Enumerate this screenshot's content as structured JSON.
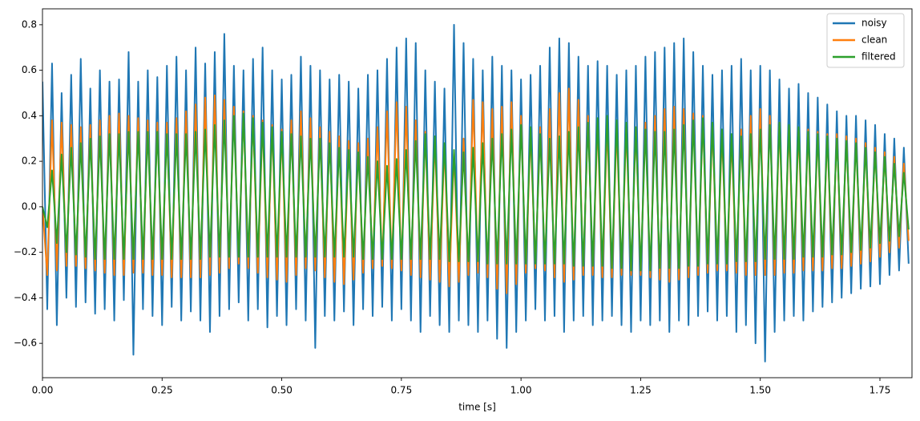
{
  "chart_data": {
    "type": "line",
    "xlabel": "time [s]",
    "x": [
      0,
      0.01,
      0.02,
      0.03,
      0.04,
      0.05,
      0.06,
      0.07,
      0.08,
      0.09,
      0.1,
      0.11,
      0.12,
      0.13,
      0.14,
      0.15,
      0.16,
      0.17,
      0.18,
      0.19,
      0.2,
      0.21,
      0.22,
      0.23,
      0.24,
      0.25,
      0.26,
      0.27,
      0.28,
      0.29,
      0.3,
      0.31,
      0.32,
      0.33,
      0.34,
      0.35,
      0.36,
      0.37,
      0.38,
      0.39,
      0.4,
      0.41,
      0.42,
      0.43,
      0.44,
      0.45,
      0.46,
      0.47,
      0.48,
      0.49,
      0.5,
      0.51,
      0.52,
      0.53,
      0.54,
      0.55,
      0.56,
      0.57,
      0.58,
      0.59,
      0.6,
      0.61,
      0.62,
      0.63,
      0.64,
      0.65,
      0.66,
      0.67,
      0.68,
      0.69,
      0.7,
      0.71,
      0.72,
      0.73,
      0.74,
      0.75,
      0.76,
      0.77,
      0.78,
      0.79,
      0.8,
      0.81,
      0.82,
      0.83,
      0.84,
      0.85,
      0.86,
      0.87,
      0.88,
      0.89,
      0.9,
      0.91,
      0.92,
      0.93,
      0.94,
      0.95,
      0.96,
      0.97,
      0.98,
      0.99,
      1,
      1.01,
      1.02,
      1.03,
      1.04,
      1.05,
      1.06,
      1.07,
      1.08,
      1.09,
      1.1,
      1.11,
      1.12,
      1.13,
      1.14,
      1.15,
      1.16,
      1.17,
      1.18,
      1.19,
      1.2,
      1.21,
      1.22,
      1.23,
      1.24,
      1.25,
      1.26,
      1.27,
      1.28,
      1.29,
      1.3,
      1.31,
      1.32,
      1.33,
      1.34,
      1.35,
      1.36,
      1.37,
      1.38,
      1.39,
      1.4,
      1.41,
      1.42,
      1.43,
      1.44,
      1.45,
      1.46,
      1.47,
      1.48,
      1.49,
      1.5,
      1.51,
      1.52,
      1.53,
      1.54,
      1.55,
      1.56,
      1.57,
      1.58,
      1.59,
      1.6,
      1.61,
      1.62,
      1.63,
      1.64,
      1.65,
      1.66,
      1.67,
      1.68,
      1.69,
      1.7,
      1.71,
      1.72,
      1.73,
      1.74,
      1.75,
      1.76,
      1.77,
      1.78,
      1.79,
      1.8,
      1.81
    ],
    "series": [
      {
        "name": "noisy",
        "color": "#1f77b4",
        "values": [
          0.55,
          -0.45,
          0.63,
          -0.52,
          0.5,
          -0.4,
          0.58,
          -0.44,
          0.65,
          -0.42,
          0.52,
          -0.47,
          0.6,
          -0.45,
          0.55,
          -0.5,
          0.56,
          -0.41,
          0.68,
          -0.65,
          0.55,
          -0.45,
          0.6,
          -0.48,
          0.57,
          -0.52,
          0.62,
          -0.44,
          0.66,
          -0.5,
          0.6,
          -0.46,
          0.7,
          -0.5,
          0.63,
          -0.55,
          0.68,
          -0.48,
          0.76,
          -0.45,
          0.62,
          -0.42,
          0.6,
          -0.5,
          0.65,
          -0.45,
          0.7,
          -0.53,
          0.6,
          -0.48,
          0.56,
          -0.52,
          0.58,
          -0.45,
          0.66,
          -0.5,
          0.62,
          -0.62,
          0.6,
          -0.48,
          0.56,
          -0.5,
          0.58,
          -0.46,
          0.55,
          -0.52,
          0.52,
          -0.45,
          0.58,
          -0.48,
          0.6,
          -0.44,
          0.65,
          -0.5,
          0.7,
          -0.45,
          0.74,
          -0.5,
          0.72,
          -0.55,
          0.6,
          -0.48,
          0.55,
          -0.52,
          0.52,
          -0.55,
          0.8,
          -0.5,
          0.72,
          -0.52,
          0.65,
          -0.55,
          0.6,
          -0.5,
          0.66,
          -0.58,
          0.62,
          -0.62,
          0.6,
          -0.55,
          0.56,
          -0.5,
          0.58,
          -0.45,
          0.62,
          -0.5,
          0.7,
          -0.48,
          0.74,
          -0.55,
          0.72,
          -0.5,
          0.66,
          -0.48,
          0.62,
          -0.52,
          0.64,
          -0.5,
          0.62,
          -0.48,
          0.58,
          -0.52,
          0.6,
          -0.55,
          0.62,
          -0.5,
          0.66,
          -0.52,
          0.68,
          -0.5,
          0.7,
          -0.55,
          0.72,
          -0.5,
          0.74,
          -0.52,
          0.68,
          -0.48,
          0.62,
          -0.46,
          0.58,
          -0.5,
          0.6,
          -0.48,
          0.62,
          -0.55,
          0.65,
          -0.52,
          0.6,
          -0.6,
          0.62,
          -0.68,
          0.6,
          -0.55,
          0.56,
          -0.5,
          0.52,
          -0.48,
          0.54,
          -0.5,
          0.5,
          -0.46,
          0.48,
          -0.44,
          0.45,
          -0.42,
          0.42,
          -0.4,
          0.4,
          -0.38,
          0.4,
          -0.36,
          0.38,
          -0.35,
          0.36,
          -0.34,
          0.32,
          -0.3,
          0.3,
          -0.28,
          0.26,
          -0.25
        ]
      },
      {
        "name": "clean",
        "color": "#ff7f0e",
        "values": [
          0,
          -0.3,
          0.38,
          -0.28,
          0.37,
          -0.26,
          0.36,
          -0.26,
          0.35,
          -0.27,
          0.36,
          -0.28,
          0.38,
          -0.29,
          0.4,
          -0.3,
          0.41,
          -0.3,
          0.4,
          -0.29,
          0.39,
          -0.29,
          0.38,
          -0.3,
          0.37,
          -0.3,
          0.37,
          -0.31,
          0.39,
          -0.31,
          0.42,
          -0.31,
          0.45,
          -0.31,
          0.48,
          -0.3,
          0.49,
          -0.29,
          0.47,
          -0.27,
          0.44,
          -0.25,
          0.42,
          -0.27,
          0.4,
          -0.29,
          0.38,
          -0.31,
          0.36,
          -0.32,
          0.34,
          -0.33,
          0.38,
          -0.3,
          0.42,
          -0.27,
          0.39,
          -0.28,
          0.35,
          -0.31,
          0.33,
          -0.33,
          0.31,
          -0.34,
          0.29,
          -0.32,
          0.28,
          -0.29,
          0.3,
          -0.27,
          0.35,
          -0.26,
          0.42,
          -0.27,
          0.46,
          -0.28,
          0.44,
          -0.3,
          0.38,
          -0.31,
          0.33,
          -0.32,
          0.3,
          -0.33,
          0.27,
          -0.35,
          0.24,
          -0.33,
          0.3,
          -0.3,
          0.47,
          -0.29,
          0.46,
          -0.31,
          0.43,
          -0.36,
          0.44,
          -0.38,
          0.46,
          -0.34,
          0.4,
          -0.29,
          0.33,
          -0.27,
          0.35,
          -0.28,
          0.43,
          -0.31,
          0.5,
          -0.33,
          0.52,
          -0.32,
          0.47,
          -0.3,
          0.4,
          -0.3,
          0.37,
          -0.31,
          0.36,
          -0.31,
          0.35,
          -0.3,
          0.35,
          -0.3,
          0.35,
          -0.3,
          0.37,
          -0.31,
          0.4,
          -0.32,
          0.43,
          -0.33,
          0.44,
          -0.32,
          0.43,
          -0.31,
          0.41,
          -0.3,
          0.4,
          -0.29,
          0.36,
          -0.28,
          0.32,
          -0.28,
          0.3,
          -0.29,
          0.34,
          -0.3,
          0.4,
          -0.3,
          0.43,
          -0.3,
          0.4,
          -0.3,
          0.37,
          -0.29,
          0.35,
          -0.29,
          0.34,
          -0.28,
          0.34,
          -0.28,
          0.33,
          -0.28,
          0.32,
          -0.27,
          0.32,
          -0.27,
          0.31,
          -0.26,
          0.3,
          -0.25,
          0.28,
          -0.24,
          0.26,
          -0.22,
          0.24,
          -0.2,
          0.22,
          -0.18,
          0.19,
          -0.15
        ]
      },
      {
        "name": "filtered",
        "color": "#2ca02c",
        "values": [
          0,
          -0.09,
          0.16,
          -0.16,
          0.23,
          -0.2,
          0.26,
          -0.21,
          0.28,
          -0.22,
          0.3,
          -0.23,
          0.31,
          -0.23,
          0.32,
          -0.23,
          0.32,
          -0.23,
          0.33,
          -0.23,
          0.33,
          -0.23,
          0.33,
          -0.23,
          0.33,
          -0.23,
          0.32,
          -0.23,
          0.32,
          -0.23,
          0.32,
          -0.23,
          0.33,
          -0.23,
          0.34,
          -0.22,
          0.36,
          -0.22,
          0.38,
          -0.22,
          0.4,
          -0.22,
          0.41,
          -0.22,
          0.39,
          -0.22,
          0.37,
          -0.22,
          0.35,
          -0.22,
          0.33,
          -0.22,
          0.32,
          -0.22,
          0.31,
          -0.22,
          0.3,
          -0.22,
          0.3,
          -0.22,
          0.28,
          -0.22,
          0.26,
          -0.22,
          0.25,
          -0.22,
          0.24,
          -0.23,
          0.22,
          -0.23,
          0.2,
          -0.23,
          0.18,
          -0.23,
          0.21,
          -0.23,
          0.25,
          -0.23,
          0.29,
          -0.23,
          0.32,
          -0.23,
          0.31,
          -0.23,
          0.28,
          -0.24,
          0.25,
          -0.24,
          0.24,
          -0.24,
          0.26,
          -0.24,
          0.28,
          -0.25,
          0.3,
          -0.25,
          0.32,
          -0.25,
          0.34,
          -0.25,
          0.36,
          -0.25,
          0.35,
          -0.25,
          0.32,
          -0.25,
          0.3,
          -0.25,
          0.31,
          -0.25,
          0.33,
          -0.26,
          0.35,
          -0.26,
          0.37,
          -0.26,
          0.39,
          -0.26,
          0.4,
          -0.27,
          0.38,
          -0.27,
          0.37,
          -0.28,
          0.35,
          -0.28,
          0.34,
          -0.28,
          0.33,
          -0.27,
          0.33,
          -0.27,
          0.34,
          -0.27,
          0.36,
          -0.26,
          0.38,
          -0.26,
          0.39,
          -0.25,
          0.37,
          -0.25,
          0.34,
          -0.25,
          0.32,
          -0.24,
          0.31,
          -0.24,
          0.32,
          -0.24,
          0.34,
          -0.23,
          0.36,
          -0.23,
          0.37,
          -0.23,
          0.36,
          -0.23,
          0.35,
          -0.22,
          0.33,
          -0.22,
          0.32,
          -0.22,
          0.31,
          -0.21,
          0.3,
          -0.21,
          0.29,
          -0.2,
          0.28,
          -0.19,
          0.26,
          -0.18,
          0.24,
          -0.16,
          0.22,
          -0.15,
          0.19,
          -0.13,
          0.15,
          -0.1
        ]
      }
    ],
    "xlim": [
      0,
      1.817
    ],
    "xticks": [
      {
        "value": 0,
        "label": "0.00"
      },
      {
        "value": 0.25,
        "label": "0.25"
      },
      {
        "value": 0.5,
        "label": "0.50"
      },
      {
        "value": 0.75,
        "label": "0.75"
      },
      {
        "value": 1,
        "label": "1.00"
      },
      {
        "value": 1.25,
        "label": "1.25"
      },
      {
        "value": 1.5,
        "label": "1.50"
      },
      {
        "value": 1.75,
        "label": "1.75"
      }
    ],
    "ylim": [
      -0.751,
      0.87
    ],
    "yticks": [
      {
        "value": -0.6,
        "label": "−0.6"
      },
      {
        "value": -0.4,
        "label": "−0.4"
      },
      {
        "value": -0.2,
        "label": "−0.2"
      },
      {
        "value": 0,
        "label": "0.0"
      },
      {
        "value": 0.2,
        "label": "0.2"
      },
      {
        "value": 0.4,
        "label": "0.4"
      },
      {
        "value": 0.6,
        "label": "0.6"
      },
      {
        "value": 0.8,
        "label": "0.8"
      }
    ],
    "legend": "upper right"
  }
}
